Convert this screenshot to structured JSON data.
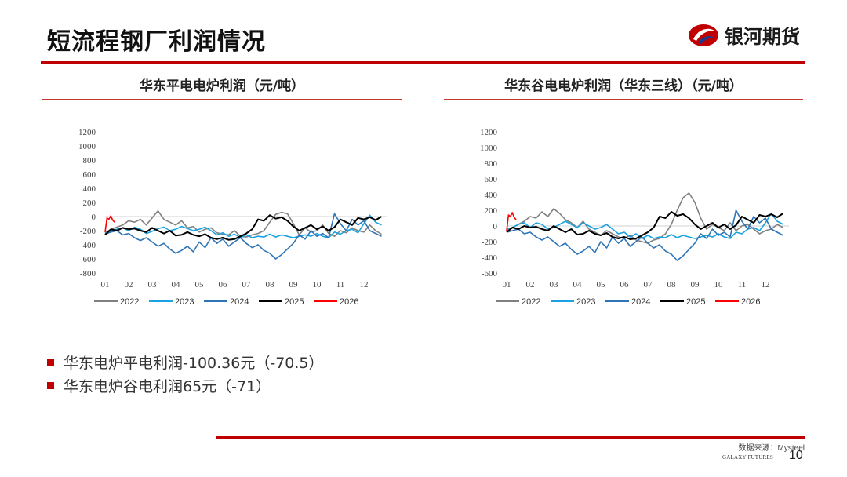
{
  "header": {
    "title": "短流程钢厂利润情况",
    "logo_text": "银河期货"
  },
  "colors": {
    "accent": "#c00000",
    "s2022": "#808080",
    "s2023": "#1aa3e0",
    "s2024": "#2e75b6",
    "s2025": "#000000",
    "s2026": "#ff0000"
  },
  "chart_data": [
    {
      "type": "line",
      "title": "华东平电电炉利润（元/吨）",
      "x_ticks": [
        "01",
        "02",
        "03",
        "04",
        "05",
        "06",
        "07",
        "08",
        "09",
        "10",
        "11",
        "12"
      ],
      "y_ticks": [
        1200,
        1000,
        800,
        600,
        400,
        200,
        0,
        -200,
        -400,
        -600,
        -800
      ],
      "ylim": [
        -800,
        1200
      ],
      "grid": false,
      "legend": "bottom",
      "series": [
        {
          "name": "2022",
          "color_key": "s2022",
          "x": [
            0.0,
            0.25,
            0.5,
            0.75,
            1.0,
            1.25,
            1.5,
            1.75,
            2.0,
            2.25,
            2.5,
            2.75,
            3.0,
            3.25,
            3.5,
            3.75,
            4.0,
            4.25,
            4.5,
            4.75,
            5.0,
            5.25,
            5.5,
            5.75,
            6.0,
            6.25,
            6.5,
            6.75,
            7.0,
            7.25,
            7.5,
            7.75,
            8.0,
            8.25,
            8.5,
            8.75,
            9.0,
            9.25,
            9.5,
            9.75,
            10.0,
            10.25,
            10.5,
            10.75,
            11.0,
            11.25,
            11.5,
            11.75
          ],
          "values": [
            -230,
            -180,
            -150,
            -120,
            -60,
            -80,
            -40,
            -120,
            -20,
            80,
            -40,
            -80,
            -120,
            -60,
            -160,
            -140,
            -220,
            -180,
            -160,
            -230,
            -250,
            -260,
            -200,
            -280,
            -290,
            -260,
            -240,
            -200,
            -80,
            30,
            60,
            40,
            -100,
            -260,
            -160,
            -220,
            -200,
            -120,
            -240,
            -280,
            -200,
            -230,
            -160,
            -200,
            -220,
            -120,
            -200,
            -250
          ]
        },
        {
          "name": "2023",
          "color_key": "s2023",
          "x": [
            0.0,
            0.25,
            0.5,
            0.75,
            1.0,
            1.25,
            1.5,
            1.75,
            2.0,
            2.25,
            2.5,
            2.75,
            3.0,
            3.25,
            3.5,
            3.75,
            4.0,
            4.25,
            4.5,
            4.75,
            5.0,
            5.25,
            5.5,
            5.75,
            6.0,
            6.25,
            6.5,
            6.75,
            7.0,
            7.25,
            7.5,
            7.75,
            8.0,
            8.25,
            8.5,
            8.75,
            9.0,
            9.25,
            9.5,
            9.75,
            10.0,
            10.25,
            10.5,
            10.75,
            11.0,
            11.25,
            11.5,
            11.75
          ],
          "values": [
            -240,
            -200,
            -180,
            -160,
            -200,
            -150,
            -180,
            -240,
            -210,
            -170,
            -150,
            -200,
            -180,
            -140,
            -170,
            -200,
            -180,
            -150,
            -200,
            -260,
            -230,
            -280,
            -250,
            -300,
            -260,
            -300,
            -280,
            -290,
            -250,
            -290,
            -260,
            -280,
            -300,
            -280,
            -260,
            -280,
            -240,
            -280,
            -300,
            -220,
            -250,
            -200,
            -180,
            -230,
            -100,
            20,
            -80,
            -120
          ]
        },
        {
          "name": "2024",
          "color_key": "s2024",
          "x": [
            0.0,
            0.25,
            0.5,
            0.75,
            1.0,
            1.25,
            1.5,
            1.75,
            2.0,
            2.25,
            2.5,
            2.75,
            3.0,
            3.25,
            3.5,
            3.75,
            4.0,
            4.25,
            4.5,
            4.75,
            5.0,
            5.25,
            5.5,
            5.75,
            6.0,
            6.25,
            6.5,
            6.75,
            7.0,
            7.25,
            7.5,
            7.75,
            8.0,
            8.25,
            8.5,
            8.75,
            9.0,
            9.25,
            9.5,
            9.75,
            10.0,
            10.25,
            10.5,
            10.75,
            11.0,
            11.25,
            11.5,
            11.75
          ],
          "values": [
            -250,
            -220,
            -200,
            -260,
            -240,
            -300,
            -340,
            -300,
            -360,
            -420,
            -380,
            -460,
            -520,
            -480,
            -420,
            -500,
            -360,
            -440,
            -300,
            -380,
            -320,
            -420,
            -360,
            -300,
            -380,
            -440,
            -400,
            -480,
            -520,
            -600,
            -540,
            -460,
            -380,
            -260,
            -320,
            -200,
            -280,
            -240,
            -300,
            40,
            -100,
            -200,
            -40,
            -120,
            -60,
            -200,
            -240,
            -280
          ]
        },
        {
          "name": "2025",
          "color_key": "s2025",
          "x": [
            0.0,
            0.25,
            0.5,
            0.75,
            1.0,
            1.25,
            1.5,
            1.75,
            2.0,
            2.25,
            2.5,
            2.75,
            3.0,
            3.25,
            3.5,
            3.75,
            4.0,
            4.25,
            4.5,
            4.75,
            5.0,
            5.25,
            5.5,
            5.75,
            6.0,
            6.25,
            6.5,
            6.75,
            7.0,
            7.25,
            7.5,
            7.75,
            8.0,
            8.25,
            8.5,
            8.75,
            9.0,
            9.25,
            9.5,
            9.75,
            10.0,
            10.25,
            10.5,
            10.75,
            11.0,
            11.25,
            11.5,
            11.75
          ],
          "values": [
            -260,
            -180,
            -200,
            -160,
            -180,
            -170,
            -200,
            -220,
            -160,
            -200,
            -240,
            -200,
            -270,
            -260,
            -220,
            -260,
            -280,
            -250,
            -300,
            -320,
            -300,
            -330,
            -320,
            -280,
            -240,
            -180,
            -40,
            -60,
            20,
            -30,
            -10,
            -60,
            -140,
            -200,
            -160,
            -120,
            -180,
            -140,
            -200,
            -150,
            -40,
            -80,
            -120,
            -20,
            -40,
            -10,
            -50,
            0
          ]
        },
        {
          "name": "2026",
          "color_key": "s2026",
          "x": [
            0.0,
            0.08,
            0.16,
            0.24,
            0.32,
            0.4
          ],
          "values": [
            -220,
            -20,
            -40,
            10,
            -50,
            -80
          ]
        }
      ]
    },
    {
      "type": "line",
      "title": "华东谷电电炉利润（华东三线）（元/吨）",
      "x_ticks": [
        "01",
        "02",
        "03",
        "04",
        "05",
        "06",
        "07",
        "08",
        "09",
        "10",
        "11",
        "12"
      ],
      "y_ticks": [
        1200,
        1000,
        800,
        600,
        400,
        200,
        0,
        -200,
        -400,
        -600
      ],
      "ylim": [
        -600,
        1200
      ],
      "grid": false,
      "legend": "bottom",
      "series": [
        {
          "name": "2022",
          "color_key": "s2022",
          "x": [
            0.0,
            0.25,
            0.5,
            0.75,
            1.0,
            1.25,
            1.5,
            1.75,
            2.0,
            2.25,
            2.5,
            2.75,
            3.0,
            3.25,
            3.5,
            3.75,
            4.0,
            4.25,
            4.5,
            4.75,
            5.0,
            5.25,
            5.5,
            5.75,
            6.0,
            6.25,
            6.5,
            6.75,
            7.0,
            7.25,
            7.5,
            7.75,
            8.0,
            8.25,
            8.5,
            8.75,
            9.0,
            9.25,
            9.5,
            9.75,
            10.0,
            10.25,
            10.5,
            10.75,
            11.0,
            11.25,
            11.5,
            11.75
          ],
          "values": [
            -60,
            -20,
            20,
            60,
            120,
            100,
            180,
            120,
            220,
            160,
            80,
            40,
            -20,
            60,
            -40,
            -80,
            -120,
            -60,
            -100,
            -140,
            -160,
            -120,
            -180,
            -200,
            -220,
            -180,
            -160,
            -100,
            20,
            200,
            360,
            420,
            300,
            100,
            -40,
            20,
            -20,
            -60,
            40,
            -60,
            0,
            20,
            -40,
            -100,
            -60,
            -40,
            20,
            -20
          ]
        },
        {
          "name": "2023",
          "color_key": "s2023",
          "x": [
            0.0,
            0.25,
            0.5,
            0.75,
            1.0,
            1.25,
            1.5,
            1.75,
            2.0,
            2.25,
            2.5,
            2.75,
            3.0,
            3.25,
            3.5,
            3.75,
            4.0,
            4.25,
            4.5,
            4.75,
            5.0,
            5.25,
            5.5,
            5.75,
            6.0,
            6.25,
            6.5,
            6.75,
            7.0,
            7.25,
            7.5,
            7.75,
            8.0,
            8.25,
            8.5,
            8.75,
            9.0,
            9.25,
            9.5,
            9.75,
            10.0,
            10.25,
            10.5,
            10.75,
            11.0,
            11.25,
            11.5,
            11.75
          ],
          "values": [
            -40,
            -20,
            20,
            40,
            -20,
            40,
            20,
            -40,
            -20,
            20,
            60,
            20,
            -20,
            40,
            0,
            -40,
            -20,
            20,
            -40,
            -100,
            -80,
            -140,
            -100,
            -160,
            -120,
            -160,
            -140,
            -150,
            -110,
            -150,
            -120,
            -140,
            -160,
            -140,
            -120,
            -140,
            -100,
            -140,
            -160,
            -80,
            -100,
            -40,
            -20,
            -60,
            40,
            160,
            60,
            20
          ]
        },
        {
          "name": "2024",
          "color_key": "s2024",
          "x": [
            0.0,
            0.25,
            0.5,
            0.75,
            1.0,
            1.25,
            1.5,
            1.75,
            2.0,
            2.25,
            2.5,
            2.75,
            3.0,
            3.25,
            3.5,
            3.75,
            4.0,
            4.25,
            4.5,
            4.75,
            5.0,
            5.25,
            5.5,
            5.75,
            6.0,
            6.25,
            6.5,
            6.75,
            7.0,
            7.25,
            7.5,
            7.75,
            8.0,
            8.25,
            8.5,
            8.75,
            9.0,
            9.25,
            9.5,
            9.75,
            10.0,
            10.25,
            10.5,
            10.75,
            11.0,
            11.25,
            11.5,
            11.75
          ],
          "values": [
            -80,
            -60,
            -40,
            -100,
            -80,
            -140,
            -180,
            -140,
            -200,
            -260,
            -220,
            -300,
            -360,
            -320,
            -260,
            -340,
            -200,
            -280,
            -140,
            -220,
            -160,
            -260,
            -200,
            -140,
            -220,
            -280,
            -240,
            -320,
            -360,
            -440,
            -380,
            -300,
            -220,
            -100,
            -160,
            -40,
            -120,
            -80,
            -140,
            200,
            60,
            -40,
            120,
            40,
            100,
            -40,
            -80,
            -120
          ]
        },
        {
          "name": "2025",
          "color_key": "s2025",
          "x": [
            0.0,
            0.25,
            0.5,
            0.75,
            1.0,
            1.25,
            1.5,
            1.75,
            2.0,
            2.25,
            2.5,
            2.75,
            3.0,
            3.25,
            3.5,
            3.75,
            4.0,
            4.25,
            4.5,
            4.75,
            5.0,
            5.25,
            5.5,
            5.75,
            6.0,
            6.25,
            6.5,
            6.75,
            7.0,
            7.25,
            7.5,
            7.75,
            8.0,
            8.25,
            8.5,
            8.75,
            9.0,
            9.25,
            9.5,
            9.75,
            10.0,
            10.25,
            10.5,
            10.75,
            11.0,
            11.25,
            11.5,
            11.75
          ],
          "values": [
            -80,
            -20,
            -40,
            0,
            -20,
            -10,
            -40,
            -60,
            0,
            -40,
            -80,
            -40,
            -110,
            -100,
            -60,
            -100,
            -120,
            -90,
            -140,
            -160,
            -140,
            -170,
            -160,
            -120,
            -80,
            -20,
            120,
            100,
            180,
            130,
            150,
            100,
            20,
            -40,
            0,
            40,
            -20,
            20,
            -40,
            10,
            120,
            80,
            40,
            140,
            120,
            150,
            110,
            160
          ]
        },
        {
          "name": "2026",
          "color_key": "s2026",
          "x": [
            0.0,
            0.08,
            0.16,
            0.24,
            0.32,
            0.4
          ],
          "values": [
            -60,
            140,
            120,
            170,
            110,
            80
          ]
        }
      ]
    }
  ],
  "bullets": [
    "华东电炉平电利润-100.36元（-70.5）",
    "华东电炉谷电利润65元（-71）"
  ],
  "footer": {
    "source": "数据来源：Mysteel",
    "company": "GALAXY FUTURES",
    "page_number": "10"
  }
}
